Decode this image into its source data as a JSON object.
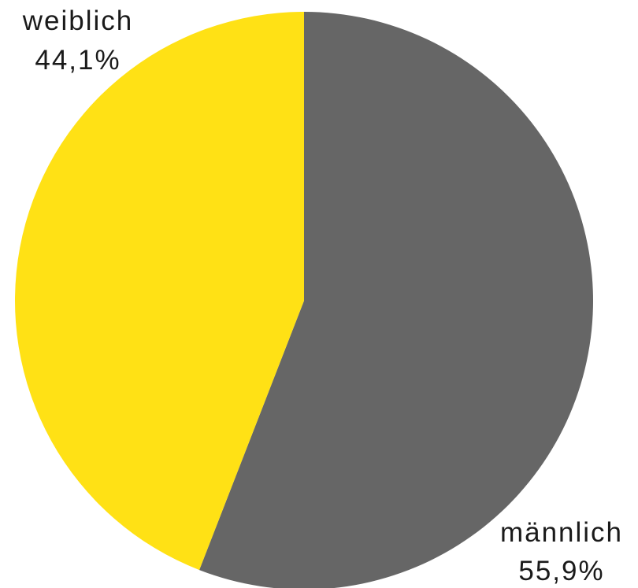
{
  "chart_data": {
    "type": "pie",
    "title": "",
    "slices": [
      {
        "label": "männlich",
        "value": 55.9,
        "value_label": "55,9%",
        "color": "#666666"
      },
      {
        "label": "weiblich",
        "value": 44.1,
        "value_label": "44,1%",
        "color": "#FFE115"
      }
    ],
    "start_angle": "12 o'clock",
    "direction": "clockwise",
    "legend": "none",
    "labels": "outside slices, category name above percentage"
  }
}
